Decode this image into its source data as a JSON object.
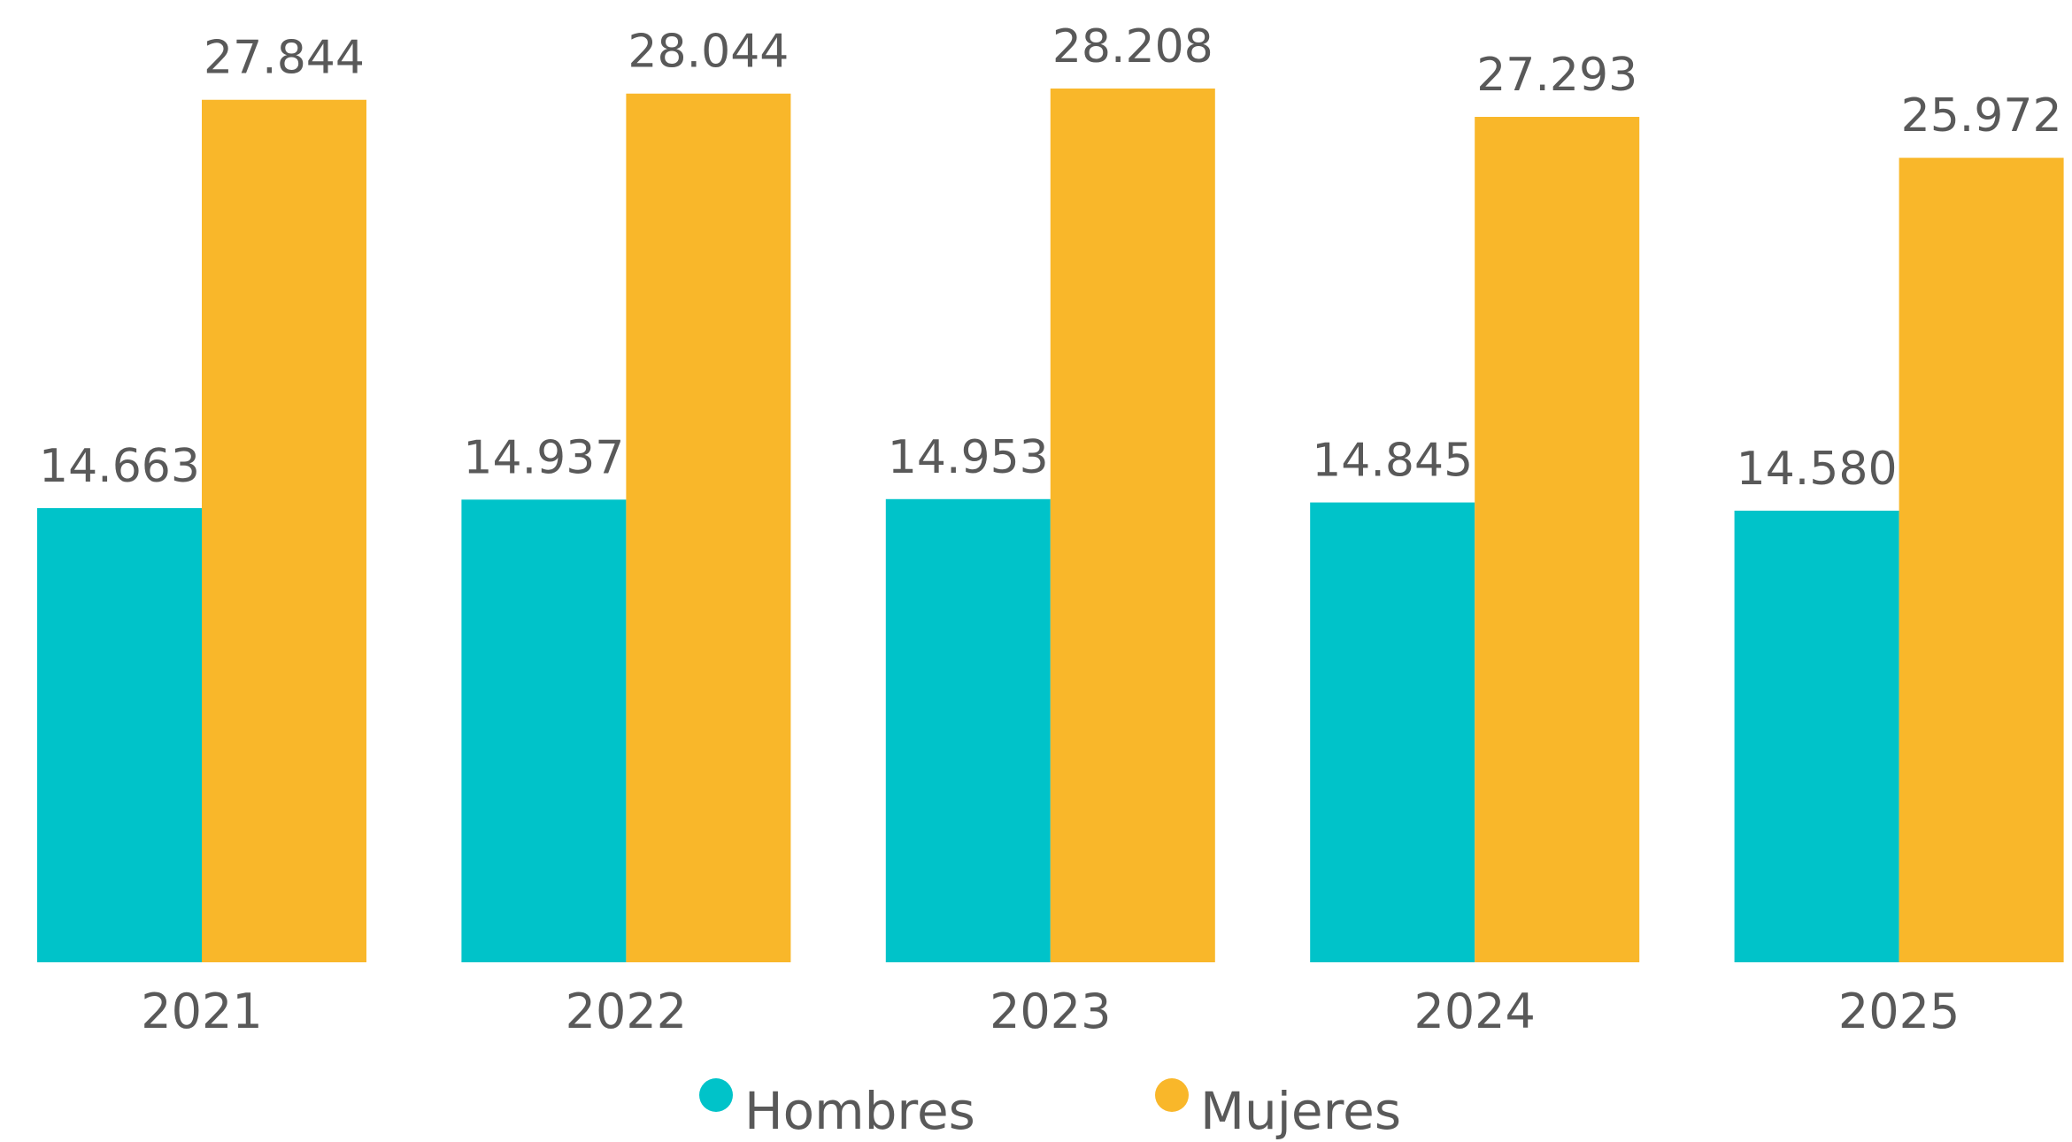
{
  "chart_data": {
    "type": "bar",
    "categories": [
      "2021",
      "2022",
      "2023",
      "2024",
      "2025"
    ],
    "series": [
      {
        "name": "Hombres",
        "color": "#00c3c9",
        "values": [
          14663,
          14937,
          14953,
          14845,
          14580
        ],
        "value_labels": [
          "14.663",
          "14.937",
          "14.953",
          "14.845",
          "14.580"
        ]
      },
      {
        "name": "Mujeres",
        "color": "#f9b72a",
        "values": [
          27844,
          28044,
          28208,
          27293,
          25972
        ],
        "value_labels": [
          "27.844",
          "28.044",
          "28.208",
          "27.293",
          "25.972"
        ]
      }
    ],
    "legend": "bottom"
  }
}
